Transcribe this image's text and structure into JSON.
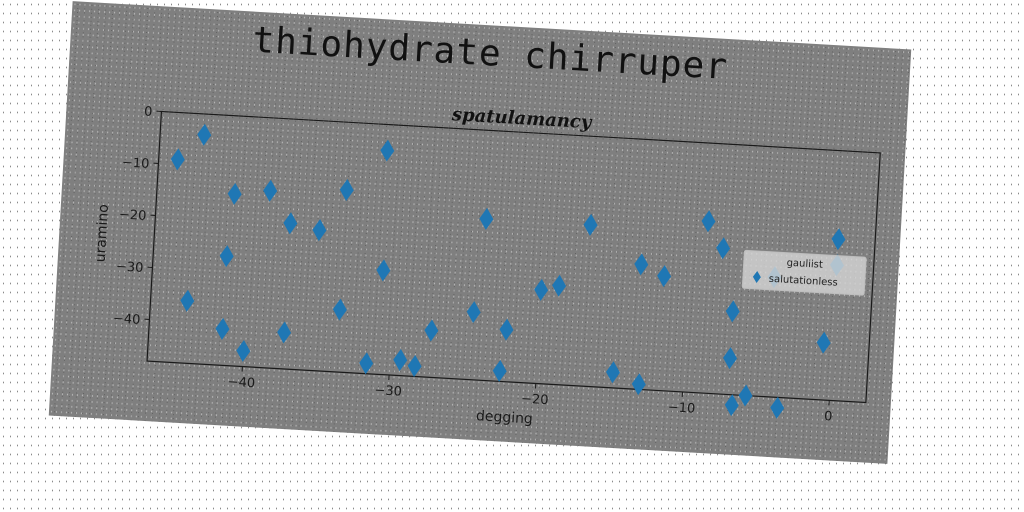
{
  "figure": {
    "suptitle": "thiohydrate chirruper"
  },
  "chart_data": {
    "type": "scatter",
    "title": "spatulamancy",
    "xlabel": "degging",
    "ylabel": "uramino",
    "xlim": [
      -46.5,
      2.5
    ],
    "ylim": [
      -48,
      0
    ],
    "xticks": [
      -40,
      -30,
      -20,
      -10,
      0
    ],
    "yticks": [
      0,
      -10,
      -20,
      -30,
      -40
    ],
    "grid": false,
    "legend": {
      "title": "gauliist",
      "placement": "right",
      "entries": [
        "salutationless"
      ]
    },
    "marker": "diamond",
    "color": "#1f77b4",
    "series": [
      {
        "name": "salutationless",
        "points": [
          [
            -45.2,
            -9
          ],
          [
            -43.5,
            -4
          ],
          [
            -44,
            -36
          ],
          [
            -41.5,
            -27
          ],
          [
            -41.2,
            -15
          ],
          [
            -41.5,
            -41
          ],
          [
            -40,
            -45
          ],
          [
            -38.8,
            -14
          ],
          [
            -37.3,
            -20
          ],
          [
            -37.3,
            -41
          ],
          [
            -35.3,
            -21
          ],
          [
            -33.6,
            -13
          ],
          [
            -33.6,
            -36
          ],
          [
            -31.6,
            -46
          ],
          [
            -31,
            -5
          ],
          [
            -30.8,
            -28
          ],
          [
            -29.3,
            -45
          ],
          [
            -28.3,
            -46
          ],
          [
            -27.3,
            -39
          ],
          [
            -24.5,
            -35
          ],
          [
            -24,
            -17
          ],
          [
            -22.5,
            -46
          ],
          [
            -22.2,
            -38
          ],
          [
            -20,
            -30
          ],
          [
            -18.8,
            -29
          ],
          [
            -16.9,
            -17
          ],
          [
            -14.8,
            -45
          ],
          [
            -13.3,
            -24
          ],
          [
            -13,
            -47
          ],
          [
            -11.7,
            -26
          ],
          [
            -8.9,
            -15
          ],
          [
            -7.8,
            -20
          ],
          [
            -6.9,
            -32
          ],
          [
            -6.9,
            -41
          ],
          [
            -6.6,
            -50
          ],
          [
            -5.7,
            -48
          ],
          [
            -4.2,
            -25
          ],
          [
            -3.5,
            -50
          ],
          [
            -0.6,
            -37
          ],
          [
            0,
            -17
          ],
          [
            0,
            -22
          ]
        ]
      }
    ]
  }
}
